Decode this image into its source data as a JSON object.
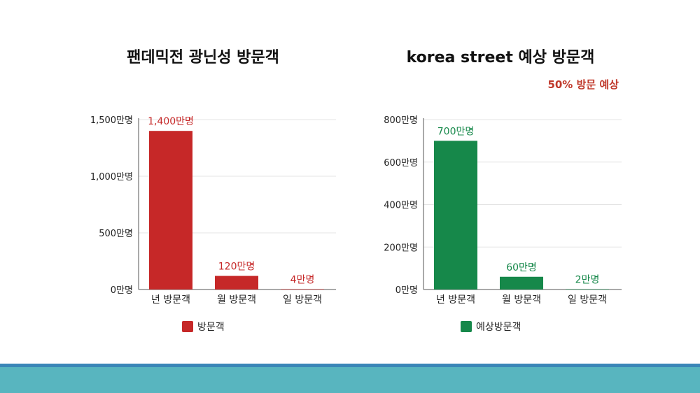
{
  "colors": {
    "red": "#c62828",
    "green": "#16884a",
    "note": "#c0392b",
    "footer": "#58b5bf",
    "footer_line": "#3a86b8"
  },
  "left_title": "팬데믹전 광닌성  방문객",
  "right_title": "korea street  예상 방문객",
  "right_note": "50% 방문 예상",
  "chart_data": [
    {
      "type": "bar",
      "title": "팬데믹전 광닌성  방문객",
      "categories": [
        "년 방문객",
        "월 방문객",
        "일 방문객"
      ],
      "series": [
        {
          "name": "방문객",
          "values": [
            1400,
            120,
            4
          ]
        }
      ],
      "data_labels": [
        "1,400만명",
        "120만명",
        "4만명"
      ],
      "yticks": [
        0,
        500,
        1000,
        1500
      ],
      "ytick_labels": [
        "0만명",
        "500만명",
        "1,000만명",
        "1,500만명"
      ],
      "ylim": [
        0,
        1500
      ],
      "grid": true,
      "legend": "bottom",
      "color": "#c62828"
    },
    {
      "type": "bar",
      "title": "korea street  예상 방문객",
      "categories": [
        "년 방문객",
        "월 방문객",
        "일 방문객"
      ],
      "series": [
        {
          "name": "예상방문객",
          "values": [
            700,
            60,
            2
          ]
        }
      ],
      "data_labels": [
        "700만명",
        "60만명",
        "2만명"
      ],
      "yticks": [
        0,
        200,
        400,
        600,
        800
      ],
      "ytick_labels": [
        "0만명",
        "200만명",
        "400만명",
        "600만명",
        "800만명"
      ],
      "ylim": [
        0,
        800
      ],
      "grid": true,
      "legend": "bottom",
      "color": "#16884a"
    }
  ]
}
